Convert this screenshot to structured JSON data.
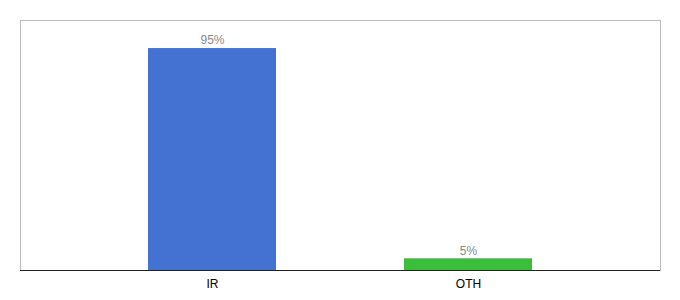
{
  "chart_data": {
    "type": "bar",
    "categories": [
      "IR",
      "OTH"
    ],
    "values": [
      95,
      5
    ],
    "value_labels": [
      "95%",
      "5%"
    ],
    "colors": [
      "#4472d3",
      "#3abf3a"
    ],
    "ylim": [
      0,
      107
    ],
    "data_labels": true,
    "tick_labels": "x"
  }
}
